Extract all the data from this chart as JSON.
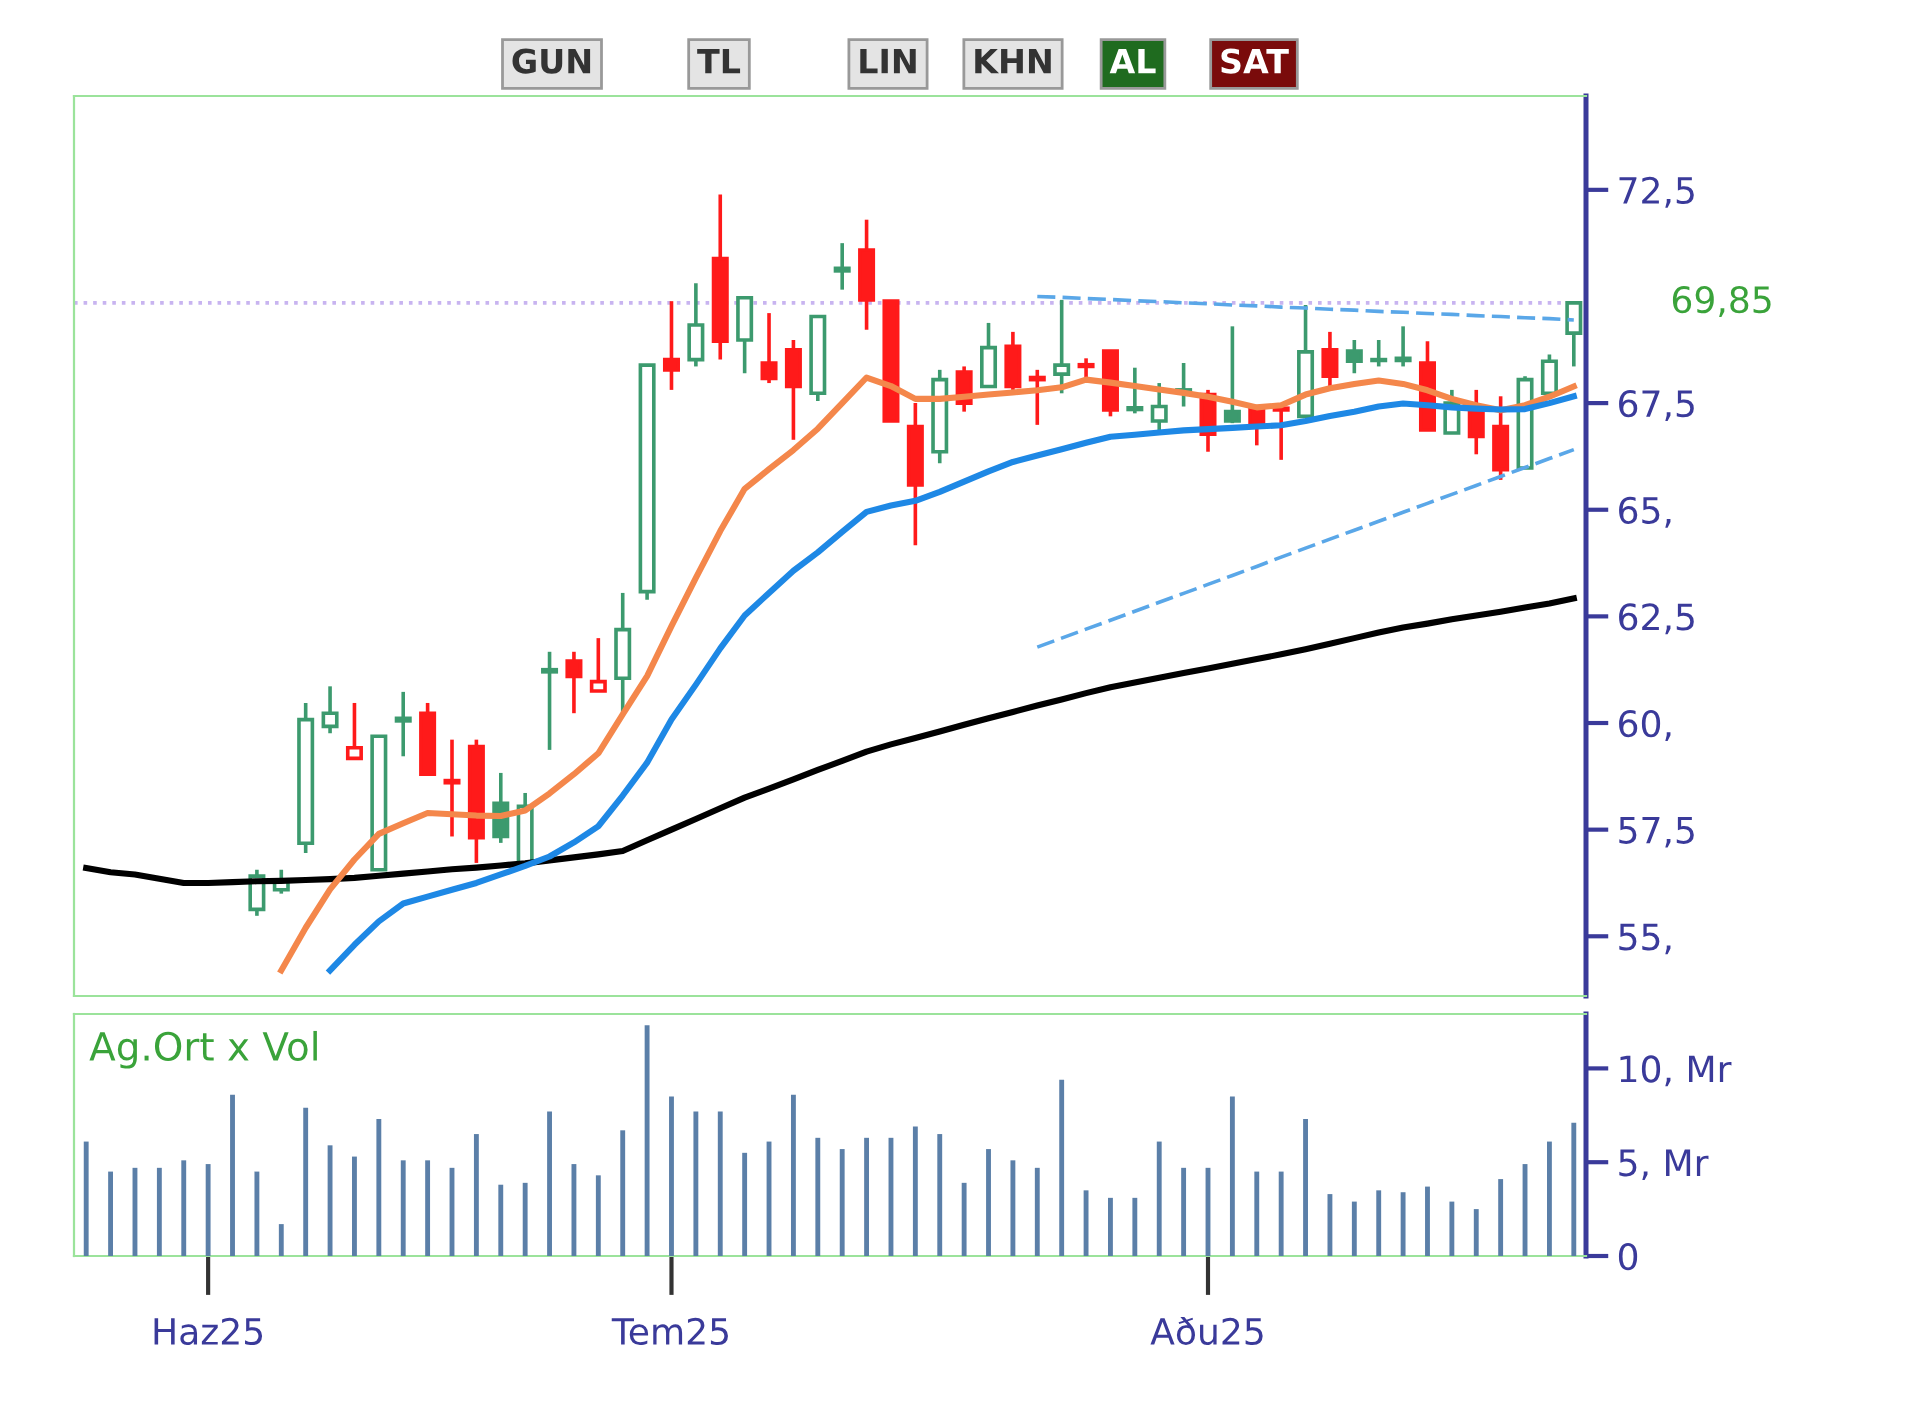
{
  "chart_data": [
    {
      "type": "candlestick",
      "annotations": [
        "GUN",
        "TL",
        "LIN",
        "KHN",
        "AL",
        "SAT"
      ],
      "categories": [
        null,
        null,
        null,
        null,
        null,
        null,
        null,
        null,
        null,
        null,
        null,
        null,
        null,
        null,
        null,
        null,
        null,
        null,
        null,
        null,
        null,
        null,
        null,
        null,
        null,
        null,
        null,
        null,
        null,
        null,
        null,
        null,
        null,
        null,
        null,
        null,
        null,
        null,
        null,
        null,
        null,
        null,
        null,
        null,
        null,
        null,
        null,
        null,
        null,
        null,
        null,
        null,
        null,
        null,
        null,
        null,
        null,
        null,
        null,
        null,
        null,
        null
      ],
      "ohlc": [
        null,
        null,
        null,
        null,
        null,
        null,
        null,
        [
          55.63,
          56.56,
          55.48,
          56.41
        ],
        [
          56.09,
          56.56,
          56.0,
          56.32
        ],
        [
          57.18,
          60.47,
          56.95,
          60.08
        ],
        [
          59.92,
          60.86,
          59.76,
          60.23
        ],
        [
          59.17,
          60.47,
          59.17,
          59.42
        ],
        [
          56.56,
          59.69,
          56.56,
          59.69
        ],
        [
          60.05,
          60.73,
          59.22,
          60.11
        ],
        [
          60.23,
          60.47,
          58.8,
          58.8
        ],
        [
          58.65,
          59.61,
          57.34,
          58.6
        ],
        [
          59.45,
          59.61,
          56.72,
          57.31
        ],
        [
          58.12,
          58.83,
          57.19,
          57.34
        ],
        [
          56.72,
          58.36,
          56.72,
          58.05
        ],
        [
          61.2,
          61.67,
          59.37,
          61.25
        ],
        [
          61.45,
          61.67,
          60.23,
          61.09
        ],
        [
          60.75,
          61.99,
          60.75,
          60.97
        ],
        [
          61.05,
          63.05,
          60.23,
          62.19
        ],
        [
          63.08,
          68.39,
          62.89,
          68.39
        ],
        [
          68.52,
          69.89,
          67.81,
          68.28
        ],
        [
          68.52,
          70.31,
          68.36,
          69.33
        ],
        [
          70.89,
          72.39,
          68.52,
          68.95
        ],
        [
          68.98,
          69.97,
          68.2,
          69.97
        ],
        [
          68.44,
          69.61,
          67.97,
          68.08
        ],
        [
          68.75,
          68.98,
          66.64,
          67.89
        ],
        [
          67.73,
          69.53,
          67.55,
          69.53
        ],
        [
          70.6,
          71.25,
          70.16,
          70.66
        ],
        [
          71.09,
          71.8,
          69.22,
          69.92
        ],
        [
          69.89,
          69.89,
          67.08,
          67.08
        ],
        [
          66.95,
          67.5,
          64.17,
          65.58
        ],
        [
          66.36,
          68.28,
          66.09,
          68.05
        ],
        [
          68.23,
          68.36,
          67.3,
          67.5
        ],
        [
          67.89,
          69.38,
          67.89,
          68.8
        ],
        [
          68.83,
          69.17,
          67.81,
          67.89
        ],
        [
          68.1,
          68.28,
          66.99,
          68.05
        ],
        [
          68.18,
          69.92,
          67.73,
          68.39
        ],
        [
          68.4,
          68.55,
          68.05,
          68.36
        ],
        [
          68.72,
          68.72,
          67.19,
          67.34
        ],
        [
          67.35,
          68.33,
          67.26,
          67.39
        ],
        [
          67.08,
          67.97,
          66.87,
          67.42
        ],
        [
          67.78,
          68.44,
          67.42,
          67.81
        ],
        [
          67.7,
          67.81,
          66.36,
          66.77
        ],
        [
          67.3,
          69.3,
          67.03,
          67.08
        ],
        [
          67.39,
          67.39,
          66.51,
          66.98
        ],
        [
          67.38,
          67.5,
          66.17,
          67.34
        ],
        [
          67.19,
          69.8,
          67.19,
          68.7
        ],
        [
          68.75,
          69.17,
          67.81,
          68.13
        ],
        [
          68.72,
          68.98,
          68.2,
          68.48
        ],
        [
          68.5,
          68.98,
          68.36,
          68.52
        ],
        [
          68.5,
          69.3,
          68.36,
          68.55
        ],
        [
          68.44,
          68.95,
          66.87,
          66.87
        ],
        [
          66.8,
          67.81,
          66.8,
          67.5
        ],
        [
          67.34,
          67.81,
          66.3,
          66.72
        ],
        [
          66.95,
          67.66,
          65.7,
          65.94
        ],
        [
          65.98,
          68.13,
          65.98,
          68.05
        ],
        [
          67.73,
          68.64,
          67.73,
          68.48
        ],
        [
          69.14,
          69.85,
          68.36,
          69.85
        ]
      ],
      "colors": [
        null,
        null,
        null,
        null,
        null,
        null,
        null,
        "#3c9a6e",
        "#3c9a6e",
        "#3c9a6e",
        "#3c9a6e",
        "#ff1a1a",
        "#3c9a6e",
        "#3c9a6e",
        "#ff1a1a",
        "#ff1a1a",
        "#ff1a1a",
        "#3c9a6e",
        "#3c9a6e",
        "#3c9a6e",
        "#ff1a1a",
        "#ff1a1a",
        "#3c9a6e",
        "#3c9a6e",
        "#ff1a1a",
        "#3c9a6e",
        "#ff1a1a",
        "#3c9a6e",
        "#ff1a1a",
        "#ff1a1a",
        "#3c9a6e",
        "#3c9a6e",
        "#ff1a1a",
        "#ff1a1a",
        "#ff1a1a",
        "#3c9a6e",
        "#ff1a1a",
        "#3c9a6e",
        "#ff1a1a",
        "#ff1a1a",
        "#3c9a6e",
        "#ff1a1a",
        "#ff1a1a",
        "#3c9a6e",
        "#3c9a6e",
        "#3c9a6e",
        "#ff1a1a",
        "#3c9a6e",
        "#ff1a1a",
        "#ff1a1a",
        "#3c9a6e",
        "#ff1a1a",
        "#3c9a6e",
        "#3c9a6e",
        "#3c9a6e",
        "#ff1a1a",
        "#3c9a6e",
        "#ff1a1a",
        "#ff1a1a",
        "#3c9a6e",
        "#3c9a6e",
        "#3c9a6e"
      ],
      "series": [
        {
          "type": "line",
          "color": "#000000",
          "values": [
            56.6,
            56.5,
            56.45,
            56.35,
            56.25,
            56.25,
            56.27,
            56.29,
            56.3,
            56.32,
            56.34,
            56.37,
            56.42,
            56.47,
            56.52,
            56.57,
            56.61,
            56.66,
            56.71,
            56.78,
            56.85,
            56.92,
            57.0,
            57.25,
            57.5,
            57.75,
            58.0,
            58.25,
            58.46,
            58.68,
            58.9,
            59.11,
            59.33,
            59.5,
            59.65,
            59.8,
            59.96,
            60.11,
            60.26,
            60.41,
            60.55,
            60.7,
            60.84,
            60.95,
            61.06,
            61.17,
            61.28,
            61.39,
            61.5,
            61.61,
            61.73,
            61.86,
            61.99,
            62.12,
            62.24,
            62.33,
            62.43,
            62.52,
            62.61,
            62.71,
            62.8,
            62.92
          ]
        },
        {
          "type": "line",
          "color": "#f4874b",
          "values": [
            null,
            null,
            null,
            null,
            null,
            null,
            null,
            null,
            54.2,
            55.2,
            56.1,
            56.8,
            57.4,
            57.65,
            57.89,
            57.86,
            57.83,
            57.82,
            57.95,
            58.35,
            58.8,
            59.29,
            60.2,
            61.1,
            62.27,
            63.4,
            64.5,
            65.49,
            65.95,
            66.4,
            66.9,
            67.5,
            68.1,
            67.9,
            67.6,
            67.6,
            67.65,
            67.7,
            67.75,
            67.8,
            67.87,
            68.05,
            67.98,
            67.9,
            67.82,
            67.74,
            67.65,
            67.53,
            67.4,
            67.45,
            67.7,
            67.85,
            67.95,
            68.03,
            67.95,
            67.8,
            67.6,
            67.45,
            67.33,
            67.45,
            67.65,
            67.89
          ]
        },
        {
          "type": "line",
          "color": "#1e88e5",
          "values": [
            null,
            null,
            null,
            null,
            null,
            null,
            null,
            null,
            null,
            null,
            54.2,
            54.8,
            55.35,
            55.77,
            55.93,
            56.09,
            56.25,
            56.45,
            56.65,
            56.87,
            57.2,
            57.58,
            58.3,
            59.07,
            60.08,
            60.9,
            61.75,
            62.52,
            63.05,
            63.57,
            64.0,
            64.48,
            64.95,
            65.1,
            65.21,
            65.42,
            65.66,
            65.9,
            66.12,
            66.27,
            66.42,
            66.57,
            66.71,
            66.76,
            66.81,
            66.86,
            66.89,
            66.92,
            66.95,
            66.98,
            67.08,
            67.2,
            67.3,
            67.42,
            67.49,
            67.45,
            67.4,
            67.37,
            67.35,
            67.36,
            67.5,
            67.66
          ]
        },
        {
          "type": "line",
          "color": "#5aa7e8",
          "line_style": "dashed",
          "values": [
            null,
            null,
            null,
            null,
            null,
            null,
            null,
            null,
            null,
            null,
            null,
            null,
            null,
            null,
            null,
            null,
            null,
            null,
            null,
            null,
            null,
            null,
            null,
            null,
            null,
            null,
            null,
            null,
            null,
            null,
            null,
            null,
            null,
            null,
            null,
            null,
            null,
            null,
            null,
            70.0,
            69.98,
            69.95,
            69.93,
            69.9,
            69.88,
            69.85,
            69.83,
            69.8,
            69.78,
            69.75,
            69.73,
            69.7,
            69.68,
            69.65,
            69.63,
            69.6,
            69.58,
            69.55,
            69.53,
            69.5,
            69.48,
            69.45
          ]
        },
        {
          "type": "line",
          "color": "#5aa7e8",
          "line_style": "dashed",
          "values": [
            null,
            null,
            null,
            null,
            null,
            null,
            null,
            null,
            null,
            null,
            null,
            null,
            null,
            null,
            null,
            null,
            null,
            null,
            null,
            null,
            null,
            null,
            null,
            null,
            null,
            null,
            null,
            null,
            null,
            null,
            null,
            null,
            null,
            null,
            null,
            null,
            null,
            null,
            null,
            61.78,
            61.99,
            62.2,
            62.41,
            62.62,
            62.83,
            63.04,
            63.25,
            63.46,
            63.67,
            63.89,
            64.1,
            64.31,
            64.52,
            64.73,
            64.94,
            65.15,
            65.36,
            65.57,
            65.78,
            65.99,
            66.2,
            66.41
          ]
        }
      ],
      "ref_lines": [
        {
          "axis": "y",
          "value": 69.85,
          "label": "69,85",
          "color": "#c8b4f0",
          "line_style": "dotted"
        }
      ],
      "ylim": [
        53.6,
        74.7
      ],
      "yticks": [
        {
          "value": 55,
          "label": "55,"
        },
        {
          "value": 57.5,
          "label": "57,5"
        },
        {
          "value": 60,
          "label": "60,"
        },
        {
          "value": 62.5,
          "label": "62,5"
        },
        {
          "value": 65,
          "label": "65,"
        },
        {
          "value": 67.5,
          "label": "67,5"
        },
        {
          "value": 72.5,
          "label": "72,5"
        }
      ],
      "tick_labels": "y"
    },
    {
      "type": "bar",
      "title": "Ag.Ort x Vol",
      "color": "#5b7fa8",
      "categories": [
        null,
        null,
        null,
        null,
        null,
        "Haz25",
        null,
        null,
        null,
        null,
        null,
        null,
        null,
        null,
        null,
        null,
        null,
        null,
        null,
        null,
        null,
        null,
        null,
        null,
        "Tem25",
        null,
        null,
        null,
        null,
        null,
        null,
        null,
        null,
        null,
        null,
        null,
        null,
        null,
        null,
        null,
        null,
        null,
        null,
        null,
        null,
        null,
        "Aðu25",
        null,
        null,
        null,
        null,
        null,
        null,
        null,
        null,
        null,
        null,
        null,
        null,
        null,
        null,
        null
      ],
      "values": [
        6.1,
        4.5,
        4.7,
        4.7,
        5.1,
        4.9,
        8.6,
        4.5,
        1.7,
        7.9,
        5.9,
        5.3,
        7.3,
        5.1,
        5.1,
        4.7,
        6.5,
        3.8,
        3.9,
        7.7,
        4.9,
        4.3,
        6.7,
        12.3,
        8.5,
        7.7,
        7.7,
        5.5,
        6.1,
        8.6,
        6.3,
        5.7,
        6.3,
        6.3,
        6.9,
        6.5,
        3.9,
        5.7,
        5.1,
        4.7,
        9.4,
        3.5,
        3.1,
        3.1,
        6.1,
        4.7,
        4.7,
        8.5,
        4.5,
        4.5,
        7.3,
        3.3,
        2.9,
        3.5,
        3.4,
        3.7,
        2.9,
        2.5,
        4.1,
        4.9,
        6.1,
        7.1
      ],
      "ylim": [
        0,
        12.9
      ],
      "yticks": [
        {
          "value": 0,
          "label": "0"
        },
        {
          "value": 5,
          "label": "5, Mr"
        },
        {
          "value": 10,
          "label": "10, Mr"
        }
      ]
    }
  ]
}
